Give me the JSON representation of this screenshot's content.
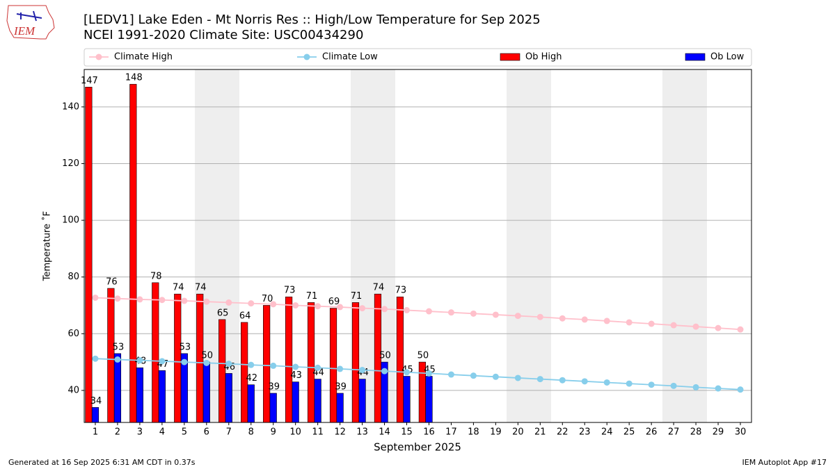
{
  "logo_text": "IEM",
  "footer_left": "Generated at 16 Sep 2025 6:31 AM CDT in 0.37s",
  "footer_right": "IEM Autoplot App #17",
  "chart_data": {
    "type": "bar",
    "title": "[LEDV1] Lake Eden - Mt Norris Res :: High/Low Temperature for Sep 2025",
    "subtitle": "NCEI 1991-2020 Climate Site: USC00434290",
    "x_label": "September 2025",
    "y_label": "Temperature ˚F",
    "x": [
      1,
      2,
      3,
      4,
      5,
      6,
      7,
      8,
      9,
      10,
      11,
      12,
      13,
      14,
      15,
      16,
      17,
      18,
      19,
      20,
      21,
      22,
      23,
      24,
      25,
      26,
      27,
      28,
      29,
      30
    ],
    "xlim": [
      0.5,
      30.5
    ],
    "ylim": [
      28.7,
      153.2
    ],
    "yticks": [
      40,
      60,
      80,
      100,
      120,
      140
    ],
    "grid": true,
    "legend": "top",
    "series": [
      {
        "name": "Climate High",
        "color": "#ffc0cb",
        "kind": "line",
        "values": [
          72.7,
          72.4,
          72.1,
          71.9,
          71.6,
          71.3,
          71.0,
          70.7,
          70.4,
          70.0,
          69.7,
          69.4,
          69.0,
          68.7,
          68.3,
          67.9,
          67.5,
          67.1,
          66.7,
          66.3,
          65.9,
          65.4,
          65.0,
          64.5,
          64.0,
          63.5,
          63.0,
          62.5,
          62.0,
          61.5
        ]
      },
      {
        "name": "Climate Low",
        "color": "#87ceeb",
        "kind": "line",
        "values": [
          51.2,
          50.9,
          50.6,
          50.3,
          50.0,
          49.7,
          49.4,
          49.0,
          48.7,
          48.3,
          48.0,
          47.6,
          47.2,
          46.8,
          46.4,
          46.0,
          45.6,
          45.2,
          44.8,
          44.4,
          44.0,
          43.6,
          43.2,
          42.8,
          42.4,
          42.0,
          41.6,
          41.1,
          40.7,
          40.3
        ]
      },
      {
        "name": "Ob High",
        "color": "#ff0000",
        "kind": "bar",
        "values": [
          147,
          76,
          148,
          78,
          74,
          74,
          65,
          64,
          70,
          73,
          71,
          69,
          71,
          74,
          73,
          50,
          null,
          null,
          null,
          null,
          null,
          null,
          null,
          null,
          null,
          null,
          null,
          null,
          null,
          null
        ]
      },
      {
        "name": "Ob Low",
        "color": "#0000ff",
        "kind": "bar",
        "values": [
          34,
          53,
          48,
          47,
          53,
          50,
          46,
          42,
          39,
          43,
          44,
          39,
          44,
          50,
          45,
          45,
          null,
          null,
          null,
          null,
          null,
          null,
          null,
          null,
          null,
          null,
          null,
          null,
          null,
          null
        ]
      }
    ]
  }
}
